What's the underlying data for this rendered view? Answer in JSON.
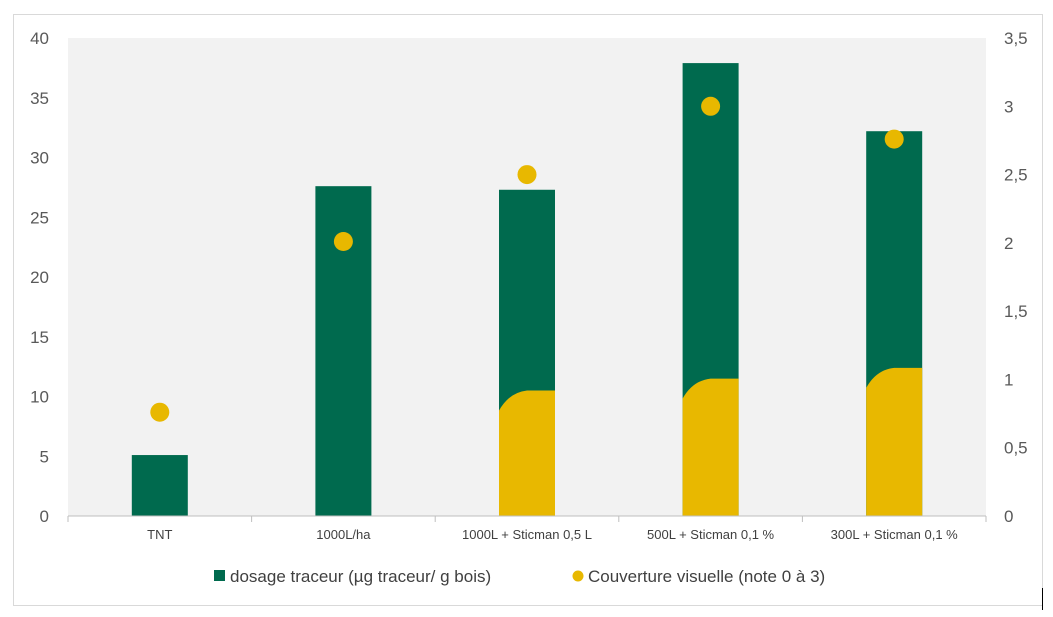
{
  "chart_data": {
    "type": "bar",
    "categories": [
      "TNT",
      "1000L/ha",
      "1000L + Sticman 0,5 L",
      "500L + Sticman 0,1 %",
      "300L + Sticman 0,1 %"
    ],
    "series": [
      {
        "name": "dosage traceur (µg traceur/ g bois)",
        "axis": "left",
        "kind": "bar",
        "color": "#006A4E",
        "values": [
          5.1,
          27.6,
          27.3,
          37.9,
          32.2
        ]
      },
      {
        "name": "Couverture visuelle (note 0 à 3)",
        "axis": "right",
        "kind": "scatter",
        "color": "#E8B800",
        "values": [
          0.76,
          2.01,
          2.5,
          3.0,
          2.76
        ]
      }
    ],
    "yleft": {
      "min": 0,
      "max": 40,
      "ticks": [
        "0",
        "5",
        "10",
        "15",
        "20",
        "25",
        "30",
        "35",
        "40"
      ]
    },
    "yright": {
      "min": 0,
      "max": 3.5,
      "ticks": [
        "0",
        "0,5",
        "1",
        "1,5",
        "2",
        "2,5",
        "3",
        "3,5"
      ]
    },
    "yellow_fill_level_left_units": [
      0,
      0,
      10.5,
      11.5,
      12.4
    ],
    "plot_background": "#f2f2f2",
    "grid": false,
    "legend_position": "bottom"
  }
}
